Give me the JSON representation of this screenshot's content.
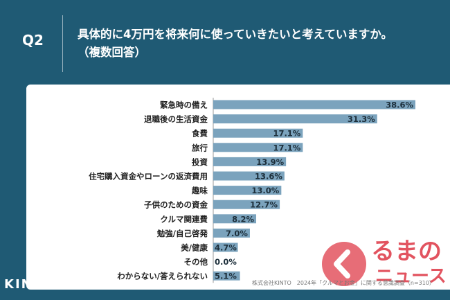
{
  "header": {
    "question_label": "Q2",
    "title_line1": "具体的に4万円を将来何に使っていきたいと考えていますか。",
    "title_line2": "（複数回答）"
  },
  "brand": {
    "name": "KINTO"
  },
  "footnote": "株式会社KINTO　2024年「クルマとお金」に関する意識調査（n=310）",
  "watermark": {
    "main": "るまの",
    "sub": "ニュース"
  },
  "colors": {
    "background": "#1f5a74",
    "bar": "#7ba3bd",
    "card": "#ffffff"
  },
  "chart_data": {
    "type": "bar",
    "orientation": "horizontal",
    "categories": [
      "緊急時の備え",
      "退職後の生活資金",
      "食費",
      "旅行",
      "投資",
      "住宅購入資金やローンの返済費用",
      "趣味",
      "子供のための資金",
      "クルマ関連費",
      "勉強/自己啓発",
      "美/健康",
      "その他",
      "わからない/答えられない"
    ],
    "values": [
      38.6,
      31.3,
      17.1,
      17.1,
      13.9,
      13.6,
      13.0,
      12.7,
      8.2,
      7.0,
      4.7,
      0.0,
      5.1
    ],
    "labels": [
      "38.6%",
      "31.3%",
      "17.1%",
      "17.1%",
      "13.9%",
      "13.6%",
      "13.0%",
      "12.7%",
      "8.2%",
      "7.0%",
      "4.7%",
      "0.0%",
      "5.1%"
    ],
    "xlim": [
      0,
      38.6
    ],
    "unit": "%"
  }
}
